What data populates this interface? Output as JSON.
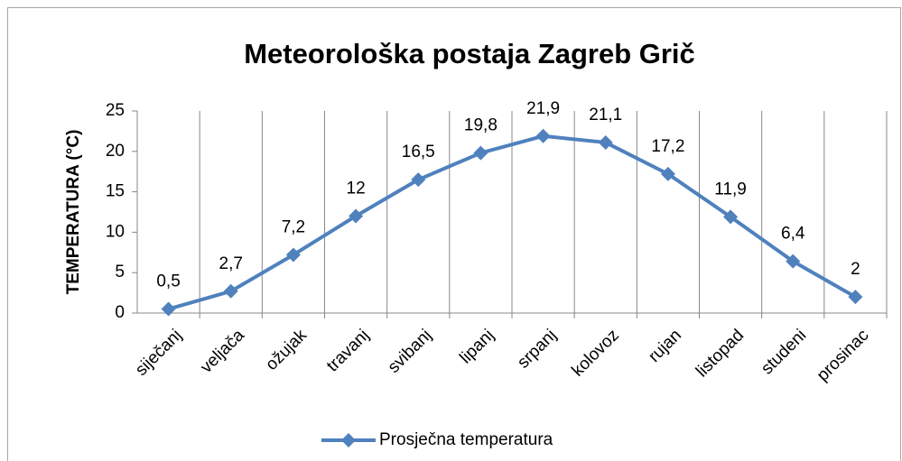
{
  "chart_data": {
    "type": "line",
    "title": "Meteorološka postaja Zagreb Grič",
    "ylabel": "TEMPERATURA (°C)",
    "categories": [
      "siječanj",
      "veljača",
      "ožujak",
      "travanj",
      "svibanj",
      "lipanj",
      "srpanj",
      "kolovoz",
      "rujan",
      "listopad",
      "studeni",
      "prosinac"
    ],
    "series": [
      {
        "name": "Prosječna temperatura",
        "color": "#4f81bd",
        "values": [
          0.5,
          2.7,
          7.2,
          12,
          16.5,
          19.8,
          21.9,
          21.1,
          17.2,
          11.9,
          6.4,
          2
        ],
        "value_labels": [
          "0,5",
          "2,7",
          "7,2",
          "12",
          "16,5",
          "19,8",
          "21,9",
          "21,1",
          "17,2",
          "11,9",
          "6,4",
          "2"
        ]
      }
    ],
    "ylim": [
      0,
      25
    ],
    "yticks": [
      0,
      5,
      10,
      15,
      20,
      25
    ],
    "xgrid": true,
    "legend": "bottom"
  }
}
